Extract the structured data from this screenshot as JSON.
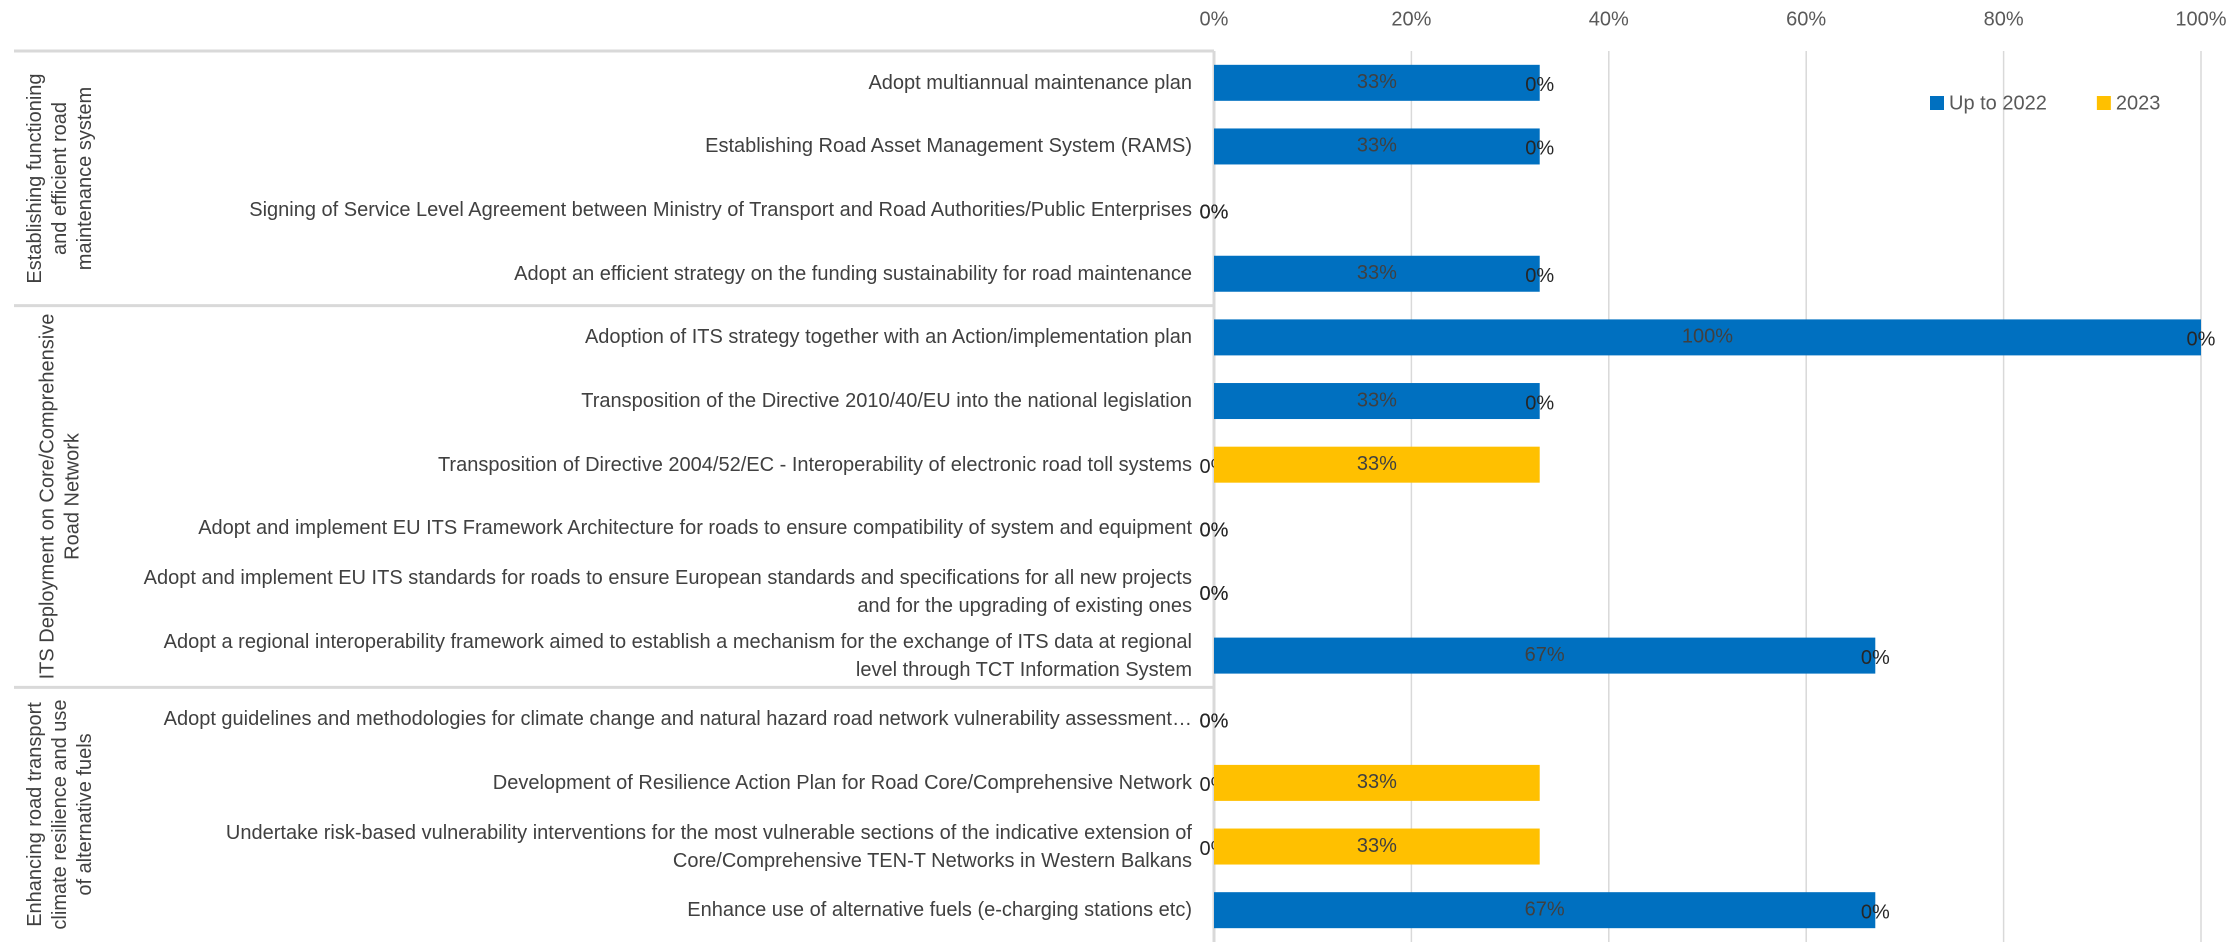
{
  "chart_data": {
    "type": "stacked_barh",
    "groups": [
      {
        "name": "Establishing functioning and efficient road maintenance system",
        "count": 4
      },
      {
        "name": "ITS Deployment on Core/Comprehensive Road Network",
        "count": 6
      },
      {
        "name": "Enhancing road transport climate resilience and use of alternative fuels",
        "count": 4
      }
    ],
    "categories": [
      "Adopt multiannual maintenance plan",
      "Establishing Road Asset Management System (RAMS)",
      "Signing of Service Level Agreement between Ministry of Transport and Road Authorities/Public Enterprises",
      "Adopt an efficient strategy on the funding sustainability for road maintenance",
      "Adoption of ITS strategy together with an Action/implementation plan",
      "Transposition of the Directive 2010/40/EU into the national legislation",
      "Transposition of Directive 2004/52/EC - Interoperability of electronic road toll systems",
      "Adopt and implement EU ITS Framework Architecture for roads to ensure compatibility of system and equipment",
      "Adopt and implement EU ITS standards for roads to ensure European standards and specifications for all new projects and for the upgrading of existing ones",
      "Adopt a regional interoperability framework aimed to establish a mechanism for the exchange of ITS data at regional level through TCT Information System",
      "Adopt guidelines and methodologies for climate change and natural hazard road network vulnerability assessment…",
      "Development of Resilience Action Plan for Road Core/Comprehensive Network",
      "Undertake risk-based vulnerability interventions for the most vulnerable sections of the indicative extension of Core/Comprehensive TEN-T Networks in Western Balkans",
      "Enhance use of alternative fuels (e-charging stations etc)"
    ],
    "series": [
      {
        "name": "Up to 2022",
        "color": "#0070c0",
        "values": [
          33,
          33,
          0,
          33,
          100,
          33,
          0,
          0,
          0,
          67,
          0,
          0,
          0,
          67
        ],
        "value_labels": [
          "33%",
          "33%",
          "0%",
          "33%",
          "100%",
          "33%",
          "0%",
          "0%",
          "0%",
          "67%",
          "0%",
          "0%",
          "0%",
          "67%"
        ]
      },
      {
        "name": "2023",
        "color": "#ffc000",
        "values": [
          0,
          0,
          0,
          0,
          0,
          0,
          33,
          0,
          0,
          0,
          0,
          33,
          33,
          0
        ],
        "value_labels": [
          "0%",
          "0%",
          "0%",
          "0%",
          "0%",
          "0%",
          "33%",
          "0%",
          "0%",
          "0%",
          "0%",
          "33%",
          "33%",
          "0%"
        ]
      }
    ],
    "xlim": [
      0,
      100
    ],
    "xticks": [
      {
        "value": 0,
        "label": "0%"
      },
      {
        "value": 20,
        "label": "20%"
      },
      {
        "value": 40,
        "label": "40%"
      },
      {
        "value": 60,
        "label": "60%"
      },
      {
        "value": 80,
        "label": "80%"
      },
      {
        "value": 100,
        "label": "100%"
      }
    ],
    "grid": true,
    "legend": "top-right"
  }
}
